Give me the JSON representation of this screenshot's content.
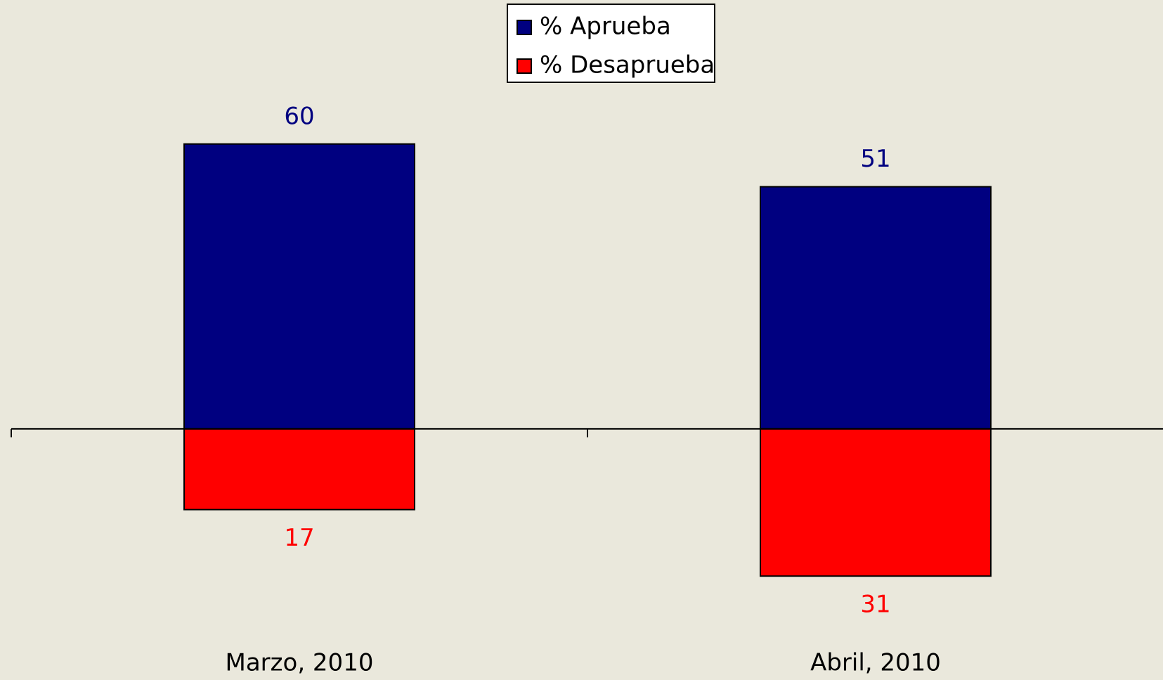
{
  "chart_data": {
    "type": "bar",
    "categories": [
      "Marzo, 2010",
      "Abril, 2010"
    ],
    "series": [
      {
        "name": "% Aprueba",
        "color": "#000080",
        "values": [
          60,
          51
        ],
        "downward": false
      },
      {
        "name": "% Desaprueba",
        "color": "#ff0000",
        "values": [
          17,
          31
        ],
        "downward": true
      }
    ],
    "ylim": [
      -40,
      65
    ],
    "legend": "top"
  }
}
